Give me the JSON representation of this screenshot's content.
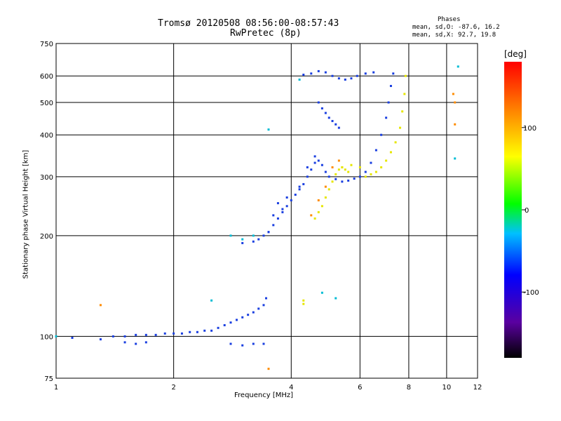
{
  "title_line1": "Tromsø 20120508 08:56:00-08:57:43",
  "title_line2": "RwPretec (8p)",
  "phases": {
    "heading": "Phases",
    "line_o": "mean, sd,O: -87.6, 16.2",
    "line_x": "mean, sd,X:  92.7, 19.8"
  },
  "colorbar": {
    "unit": "[deg]",
    "ticks": [
      {
        "value": 100,
        "label": "100"
      },
      {
        "value": 0,
        "label": "0"
      },
      {
        "value": -100,
        "label": "-100"
      }
    ],
    "range": [
      -180,
      180
    ]
  },
  "chart_data": {
    "type": "scatter",
    "xlabel": "Frequency [MHz]",
    "ylabel": "Stationary phase Virtual Height [km]",
    "xscale": "log",
    "yscale": "log",
    "xlim": [
      1,
      12
    ],
    "ylim": [
      75,
      750
    ],
    "grid": true,
    "x_ticks": [
      {
        "value": 1,
        "label": "1"
      },
      {
        "value": 2,
        "label": "2"
      },
      {
        "value": 4,
        "label": "4"
      },
      {
        "value": 6,
        "label": "6"
      },
      {
        "value": 8,
        "label": "8"
      },
      {
        "value": 10,
        "label": "10"
      },
      {
        "value": 12,
        "label": "12"
      }
    ],
    "y_ticks": [
      {
        "value": 75,
        "label": "75"
      },
      {
        "value": 100,
        "label": "100"
      },
      {
        "value": 200,
        "label": "200"
      },
      {
        "value": 300,
        "label": "300"
      },
      {
        "value": 400,
        "label": "400"
      },
      {
        "value": 500,
        "label": "500"
      },
      {
        "value": 600,
        "label": "600"
      },
      {
        "value": 750,
        "label": "750"
      }
    ],
    "series": [
      {
        "color": "#1a3fe0",
        "points": [
          [
            1.1,
            99
          ],
          [
            1.3,
            98
          ],
          [
            1.4,
            100
          ],
          [
            1.5,
            100
          ],
          [
            1.6,
            101
          ],
          [
            1.7,
            101
          ],
          [
            1.8,
            101
          ],
          [
            1.9,
            102
          ],
          [
            2.0,
            102
          ],
          [
            2.1,
            102
          ],
          [
            2.2,
            103
          ],
          [
            2.3,
            103
          ],
          [
            2.4,
            104
          ],
          [
            2.5,
            104
          ],
          [
            2.6,
            106
          ],
          [
            2.7,
            108
          ],
          [
            2.8,
            110
          ],
          [
            2.9,
            112
          ],
          [
            3.0,
            114
          ],
          [
            3.1,
            116
          ],
          [
            3.2,
            118
          ],
          [
            3.3,
            121
          ],
          [
            3.4,
            124
          ],
          [
            3.45,
            130
          ],
          [
            1.5,
            96
          ],
          [
            1.6,
            95
          ],
          [
            1.7,
            96
          ],
          [
            2.8,
            95
          ],
          [
            3.0,
            94
          ],
          [
            3.2,
            95
          ],
          [
            3.4,
            95
          ],
          [
            3.0,
            190
          ],
          [
            3.2,
            192
          ],
          [
            3.3,
            195
          ],
          [
            3.4,
            200
          ],
          [
            3.5,
            205
          ],
          [
            3.6,
            215
          ],
          [
            3.7,
            225
          ],
          [
            3.8,
            235
          ],
          [
            3.9,
            245
          ],
          [
            4.0,
            255
          ],
          [
            4.1,
            265
          ],
          [
            4.2,
            275
          ],
          [
            4.3,
            285
          ],
          [
            4.4,
            300
          ],
          [
            4.5,
            315
          ],
          [
            4.6,
            330
          ],
          [
            4.7,
            335
          ],
          [
            4.8,
            325
          ],
          [
            4.9,
            310
          ],
          [
            5.0,
            300
          ],
          [
            5.2,
            295
          ],
          [
            5.4,
            290
          ],
          [
            5.6,
            292
          ],
          [
            5.8,
            296
          ],
          [
            6.0,
            300
          ],
          [
            6.2,
            310
          ],
          [
            6.4,
            330
          ],
          [
            6.6,
            360
          ],
          [
            6.8,
            400
          ],
          [
            7.0,
            450
          ],
          [
            7.1,
            500
          ],
          [
            7.2,
            560
          ],
          [
            7.3,
            610
          ],
          [
            4.3,
            605
          ],
          [
            4.5,
            610
          ],
          [
            4.7,
            620
          ],
          [
            4.9,
            615
          ],
          [
            5.1,
            600
          ],
          [
            5.3,
            590
          ],
          [
            5.5,
            585
          ],
          [
            5.7,
            590
          ],
          [
            5.9,
            600
          ],
          [
            6.2,
            610
          ],
          [
            6.5,
            615
          ],
          [
            4.7,
            500
          ],
          [
            4.8,
            480
          ],
          [
            4.9,
            465
          ],
          [
            5.0,
            450
          ],
          [
            5.1,
            440
          ],
          [
            5.2,
            430
          ],
          [
            5.3,
            420
          ],
          [
            3.5,
            205
          ],
          [
            3.6,
            230
          ],
          [
            3.7,
            250
          ],
          [
            3.8,
            240
          ],
          [
            3.9,
            260
          ],
          [
            4.2,
            280
          ],
          [
            4.4,
            320
          ],
          [
            4.6,
            345
          ]
        ]
      },
      {
        "color": "#e6e600",
        "points": [
          [
            4.6,
            225
          ],
          [
            4.7,
            235
          ],
          [
            4.8,
            245
          ],
          [
            4.9,
            260
          ],
          [
            5.0,
            275
          ],
          [
            5.1,
            290
          ],
          [
            5.2,
            305
          ],
          [
            5.3,
            315
          ],
          [
            5.4,
            320
          ],
          [
            5.5,
            315
          ],
          [
            5.6,
            310
          ],
          [
            6.2,
            300
          ],
          [
            6.4,
            305
          ],
          [
            6.6,
            310
          ],
          [
            6.8,
            320
          ],
          [
            7.0,
            335
          ],
          [
            7.2,
            355
          ],
          [
            7.4,
            380
          ],
          [
            7.6,
            420
          ],
          [
            7.7,
            470
          ],
          [
            7.8,
            530
          ],
          [
            7.85,
            600
          ],
          [
            4.3,
            125
          ],
          [
            4.3,
            128
          ],
          [
            5.4,
            320
          ],
          [
            5.7,
            325
          ],
          [
            6.0,
            320
          ]
        ]
      },
      {
        "color": "#ff8c00",
        "points": [
          [
            4.5,
            230
          ],
          [
            4.7,
            255
          ],
          [
            4.9,
            280
          ],
          [
            5.1,
            320
          ],
          [
            5.3,
            335
          ],
          [
            1.3,
            124
          ],
          [
            3.5,
            80
          ],
          [
            10.5,
            500
          ],
          [
            10.5,
            430
          ],
          [
            10.4,
            530
          ]
        ]
      },
      {
        "color": "#00bcd4",
        "points": [
          [
            1.0,
            100
          ],
          [
            2.5,
            128
          ],
          [
            2.8,
            200
          ],
          [
            3.0,
            195
          ],
          [
            3.2,
            200
          ],
          [
            3.5,
            415
          ],
          [
            10.7,
            640
          ],
          [
            10.5,
            340
          ],
          [
            4.2,
            585
          ],
          [
            4.8,
            135
          ],
          [
            5.2,
            130
          ]
        ]
      }
    ]
  }
}
